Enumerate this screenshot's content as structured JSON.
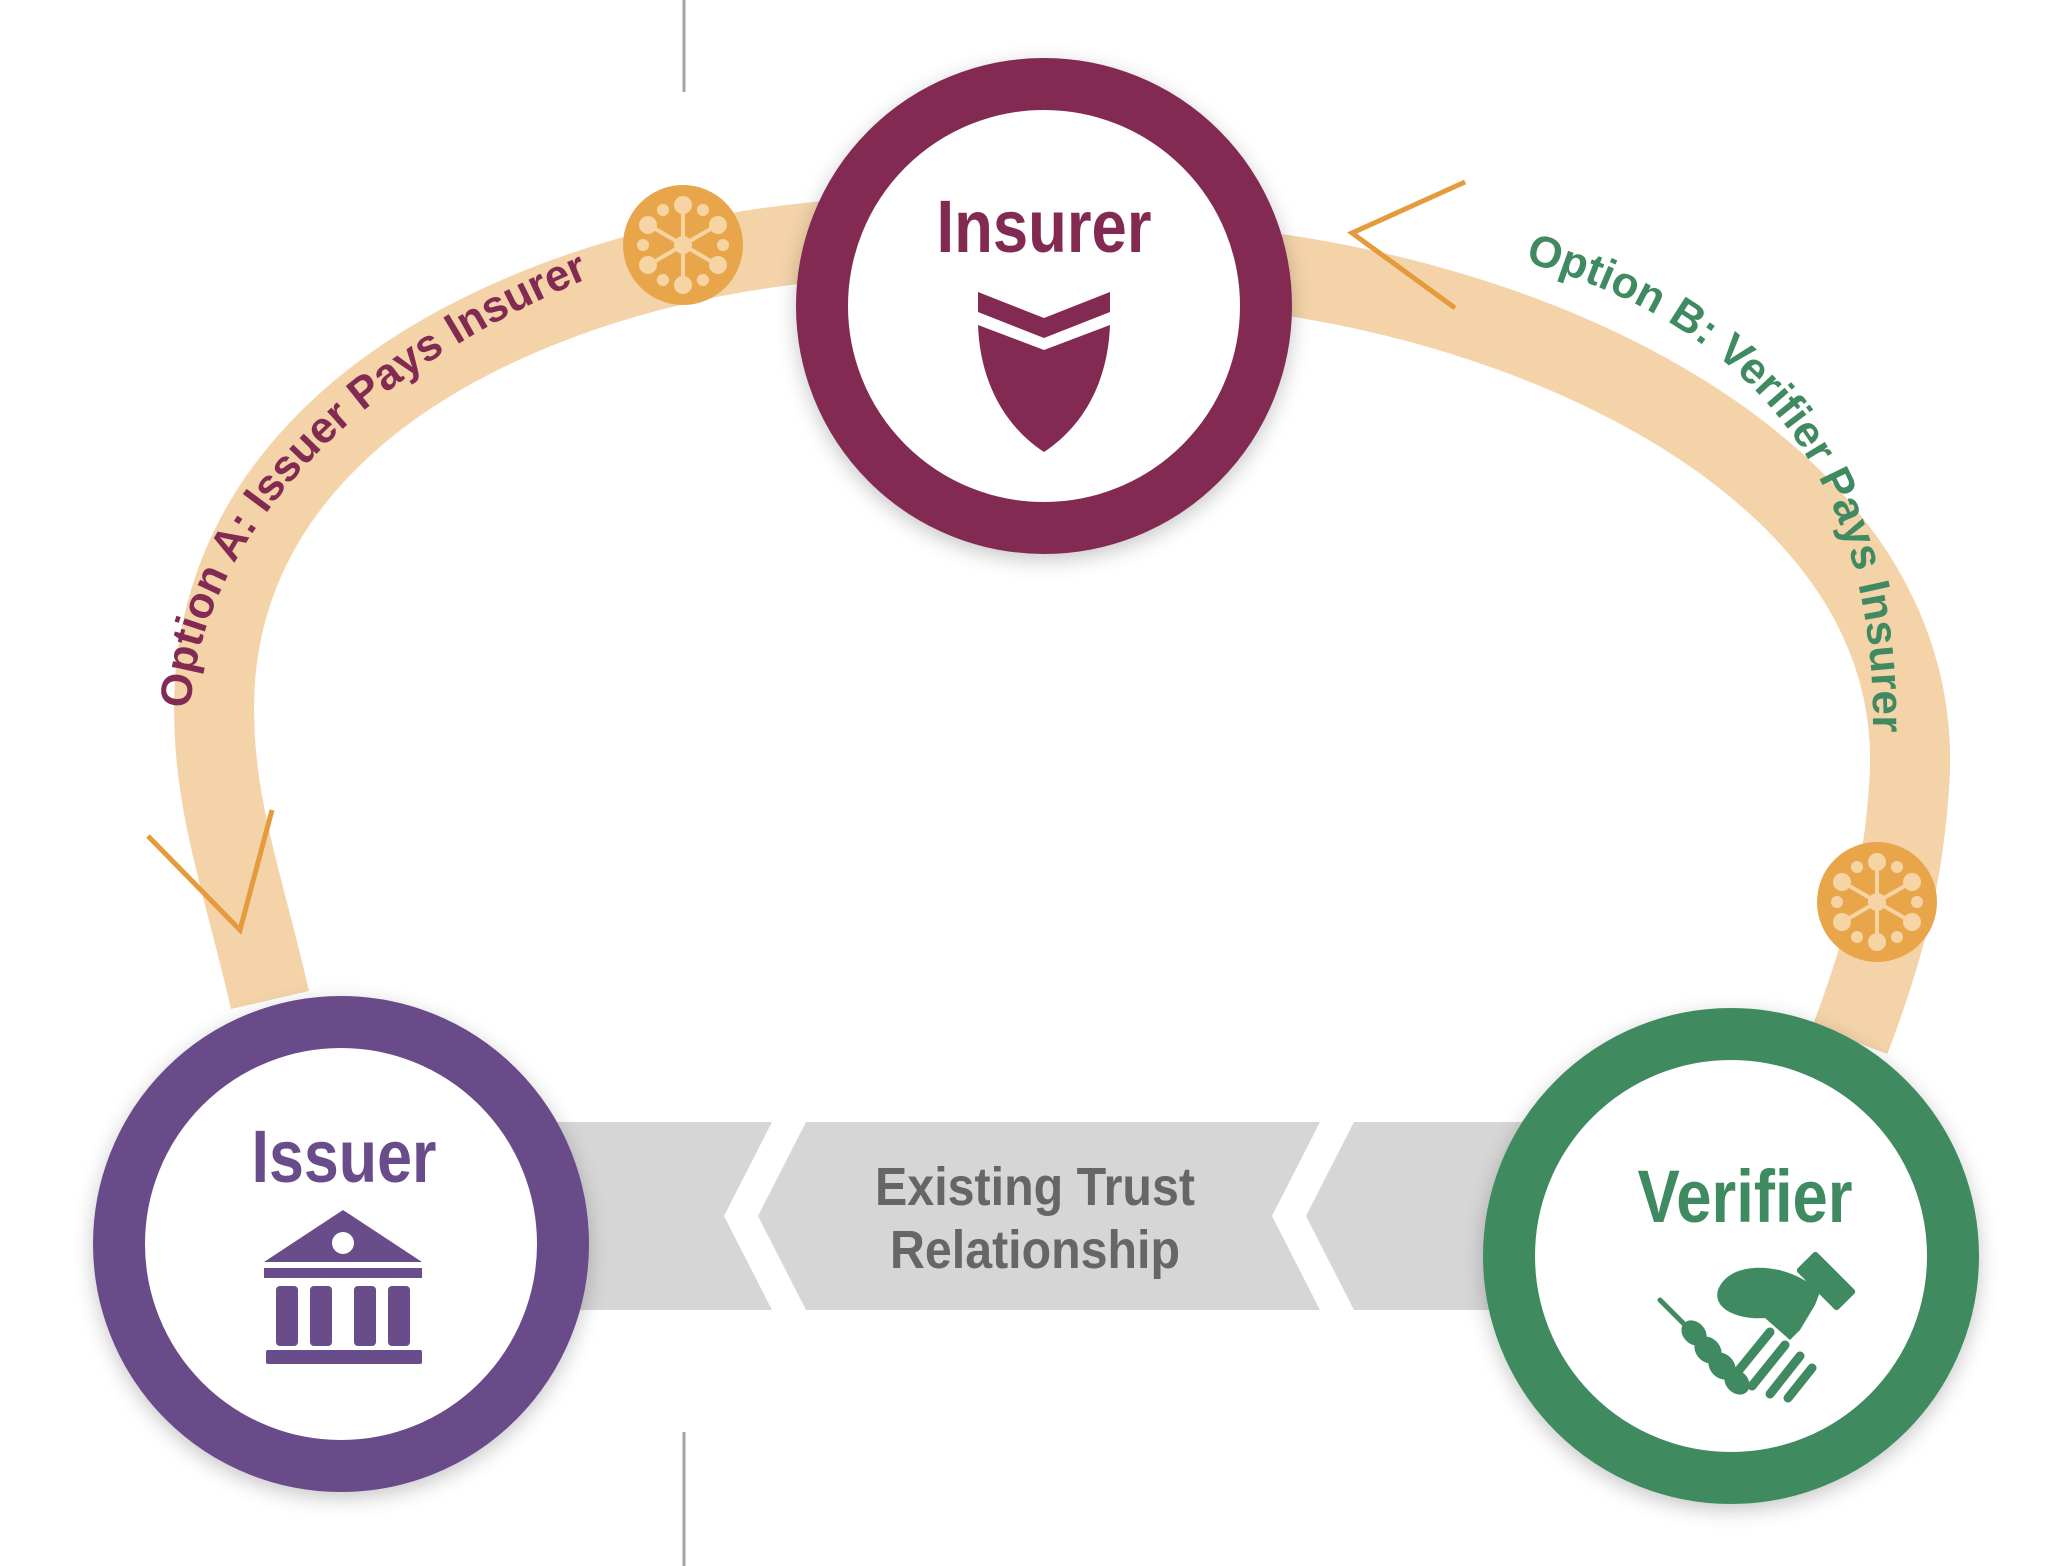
{
  "nodes": {
    "insurer": {
      "label": "Insurer",
      "color": "#832a52"
    },
    "issuer": {
      "label": "Issuer",
      "color": "#694c8a"
    },
    "verifier": {
      "label": "Verifier",
      "color": "#3f8a61"
    }
  },
  "flows": {
    "option_a": {
      "label": "Option A: Issuer Pays Insurer",
      "color": "#832a52"
    },
    "option_b": {
      "label": "Option B: Verifier Pays Insurer",
      "color": "#3f8a61"
    }
  },
  "trust": {
    "line1": "Existing Trust",
    "line2": "Relationship",
    "color": "#666666"
  },
  "colors": {
    "arc": "#f4d3a9",
    "arrow_outline": "#e59a3c",
    "token": "#e9a54a",
    "token_detail": "#f6d4a3",
    "trust_band": "#d6d6d6",
    "divider": "#a5a5a5"
  },
  "icons": {
    "insurer": "shield-icon",
    "issuer": "bank-icon",
    "verifier": "handshake-icon",
    "token": "network-token-icon"
  }
}
